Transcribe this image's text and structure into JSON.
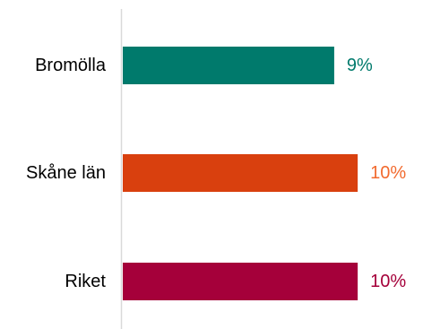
{
  "chart_data": {
    "type": "bar",
    "orientation": "horizontal",
    "title": "",
    "xlabel": "",
    "ylabel": "",
    "categories": [
      "Bromölla",
      "Skåne län",
      "Riket"
    ],
    "values": [
      9,
      10,
      10
    ],
    "value_labels": [
      "9%",
      "10%",
      "10%"
    ],
    "colors": [
      "#007A6C",
      "#D9400E",
      "#A5003A"
    ],
    "label_colors": [
      "#007A6C",
      "#F26A2E",
      "#A5003A"
    ],
    "xlim": [
      0,
      10.3
    ],
    "grid": false,
    "legend": "none",
    "axis_color": "#D9D9D9",
    "category_label_color": "#000000"
  }
}
